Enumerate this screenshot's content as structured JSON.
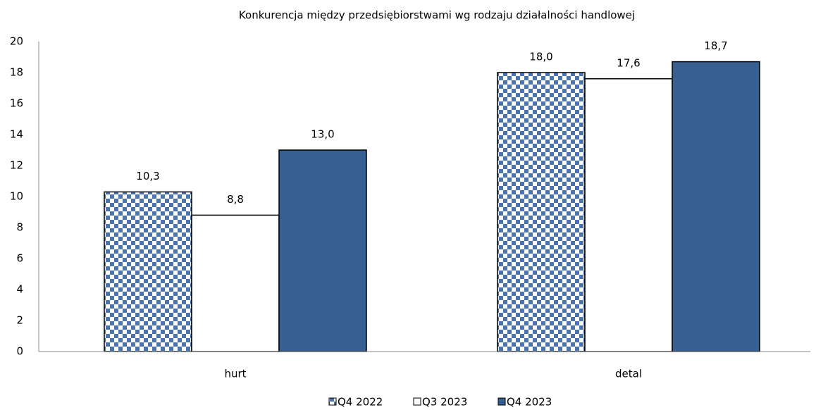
{
  "chart_data": {
    "type": "bar",
    "title": "Konkurencja między przedsiębiorstwami wg rodzaju działalności handlowej",
    "categories": [
      "hurt",
      "detal"
    ],
    "series": [
      {
        "name": "Q4 2022",
        "color": "#4a74ab",
        "pattern": "checker",
        "values": [
          10.3,
          18.0
        ],
        "value_labels": [
          "10,3",
          "18,0"
        ]
      },
      {
        "name": "Q3 2023",
        "color": "#ffffff",
        "values": [
          8.8,
          17.6
        ],
        "value_labels": [
          "8,8",
          "17,6"
        ]
      },
      {
        "name": "Q4 2023",
        "color": "#375f92",
        "values": [
          13.0,
          18.7
        ],
        "value_labels": [
          "13,0",
          "18,7"
        ]
      }
    ],
    "ylim": [
      0,
      20
    ],
    "yticks": [
      0,
      2,
      4,
      6,
      8,
      10,
      12,
      14,
      16,
      18,
      20
    ],
    "grid": false,
    "legend": "bottom"
  }
}
